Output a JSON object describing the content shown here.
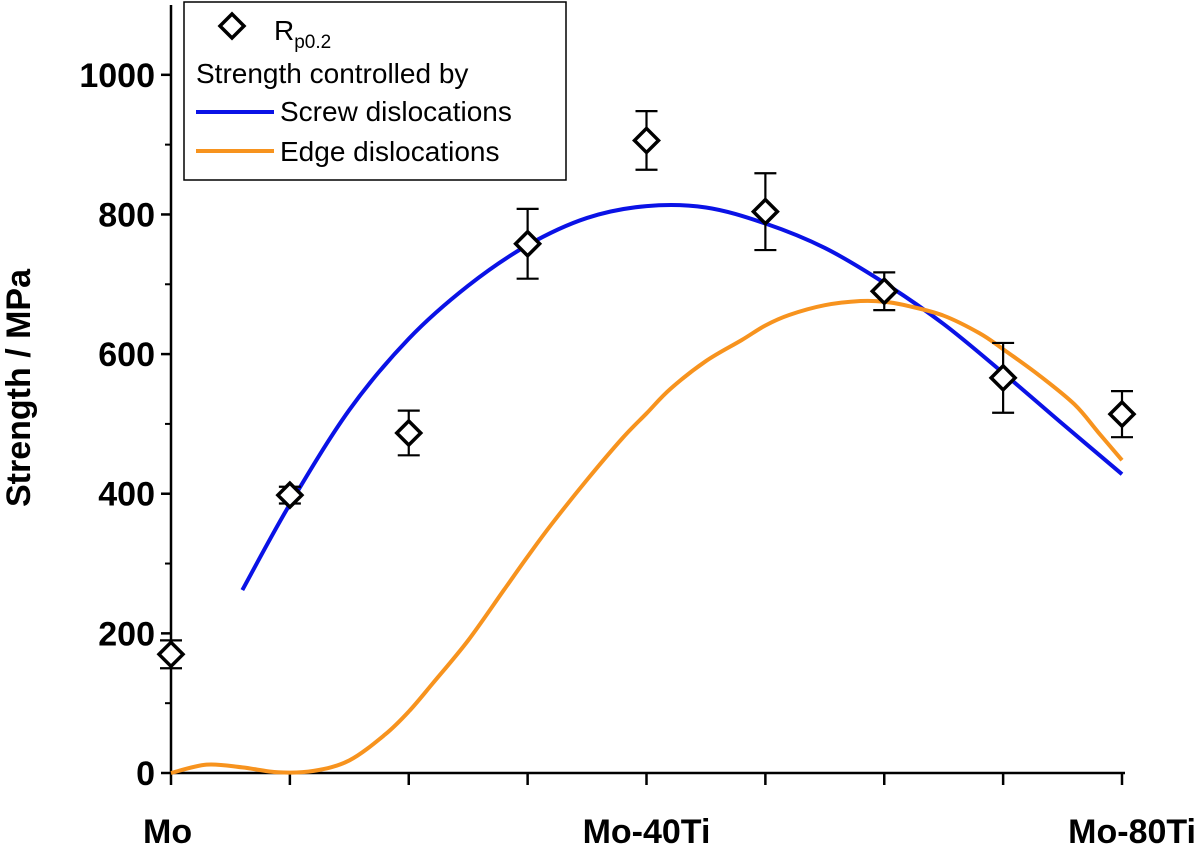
{
  "chart_data": {
    "type": "scatter",
    "title": "",
    "xlabel": "",
    "ylabel": "Strength / MPa",
    "xlim": [
      0,
      80
    ],
    "ylim": [
      0,
      1100
    ],
    "x_tick_labels": [
      {
        "x": 0,
        "label": "Mo"
      },
      {
        "x": 40,
        "label": "Mo-40Ti"
      },
      {
        "x": 80,
        "label": "Mo-80Ti"
      }
    ],
    "x_minor_ticks": [
      10,
      20,
      30,
      50,
      60,
      70
    ],
    "y_ticks": [
      0,
      200,
      400,
      600,
      800,
      1000
    ],
    "grid": false,
    "legend": {
      "placement": "top-left",
      "marker_label_main": "R",
      "marker_label_sub": "p0.2",
      "heading": "Strength controlled by",
      "screw_label": "Screw dislocations",
      "edge_label": "Edge dislocations"
    },
    "series": [
      {
        "kind": "points",
        "x": [
          0,
          10,
          20,
          30,
          40,
          50,
          60,
          70,
          80
        ],
        "y": [
          170,
          398,
          487,
          758,
          906,
          804,
          690,
          566,
          514
        ],
        "err": [
          20,
          12,
          32,
          50,
          42,
          55,
          27,
          50,
          33
        ],
        "color": "#000000"
      },
      {
        "kind": "line",
        "color": "#0a12e6",
        "x": [
          6,
          10,
          15,
          20,
          25,
          30,
          35,
          40,
          45,
          50,
          55,
          60,
          65,
          70,
          75,
          80
        ],
        "y": [
          262,
          385,
          520,
          622,
          698,
          756,
          795,
          812,
          810,
          787,
          752,
          702,
          643,
          573,
          500,
          428
        ]
      },
      {
        "kind": "line",
        "color": "#f7931e",
        "x": [
          0,
          3,
          6,
          9,
          12,
          15,
          18,
          20,
          22,
          25,
          28,
          30,
          32,
          35,
          38,
          40,
          42,
          45,
          48,
          50,
          52,
          55,
          58,
          60,
          62,
          65,
          68,
          70,
          73,
          76,
          78,
          80
        ],
        "y": [
          0,
          12,
          8,
          1,
          3,
          18,
          55,
          88,
          128,
          190,
          262,
          310,
          356,
          420,
          480,
          515,
          550,
          590,
          620,
          641,
          656,
          670,
          676,
          675,
          669,
          655,
          630,
          607,
          570,
          528,
          488,
          448
        ]
      }
    ]
  }
}
